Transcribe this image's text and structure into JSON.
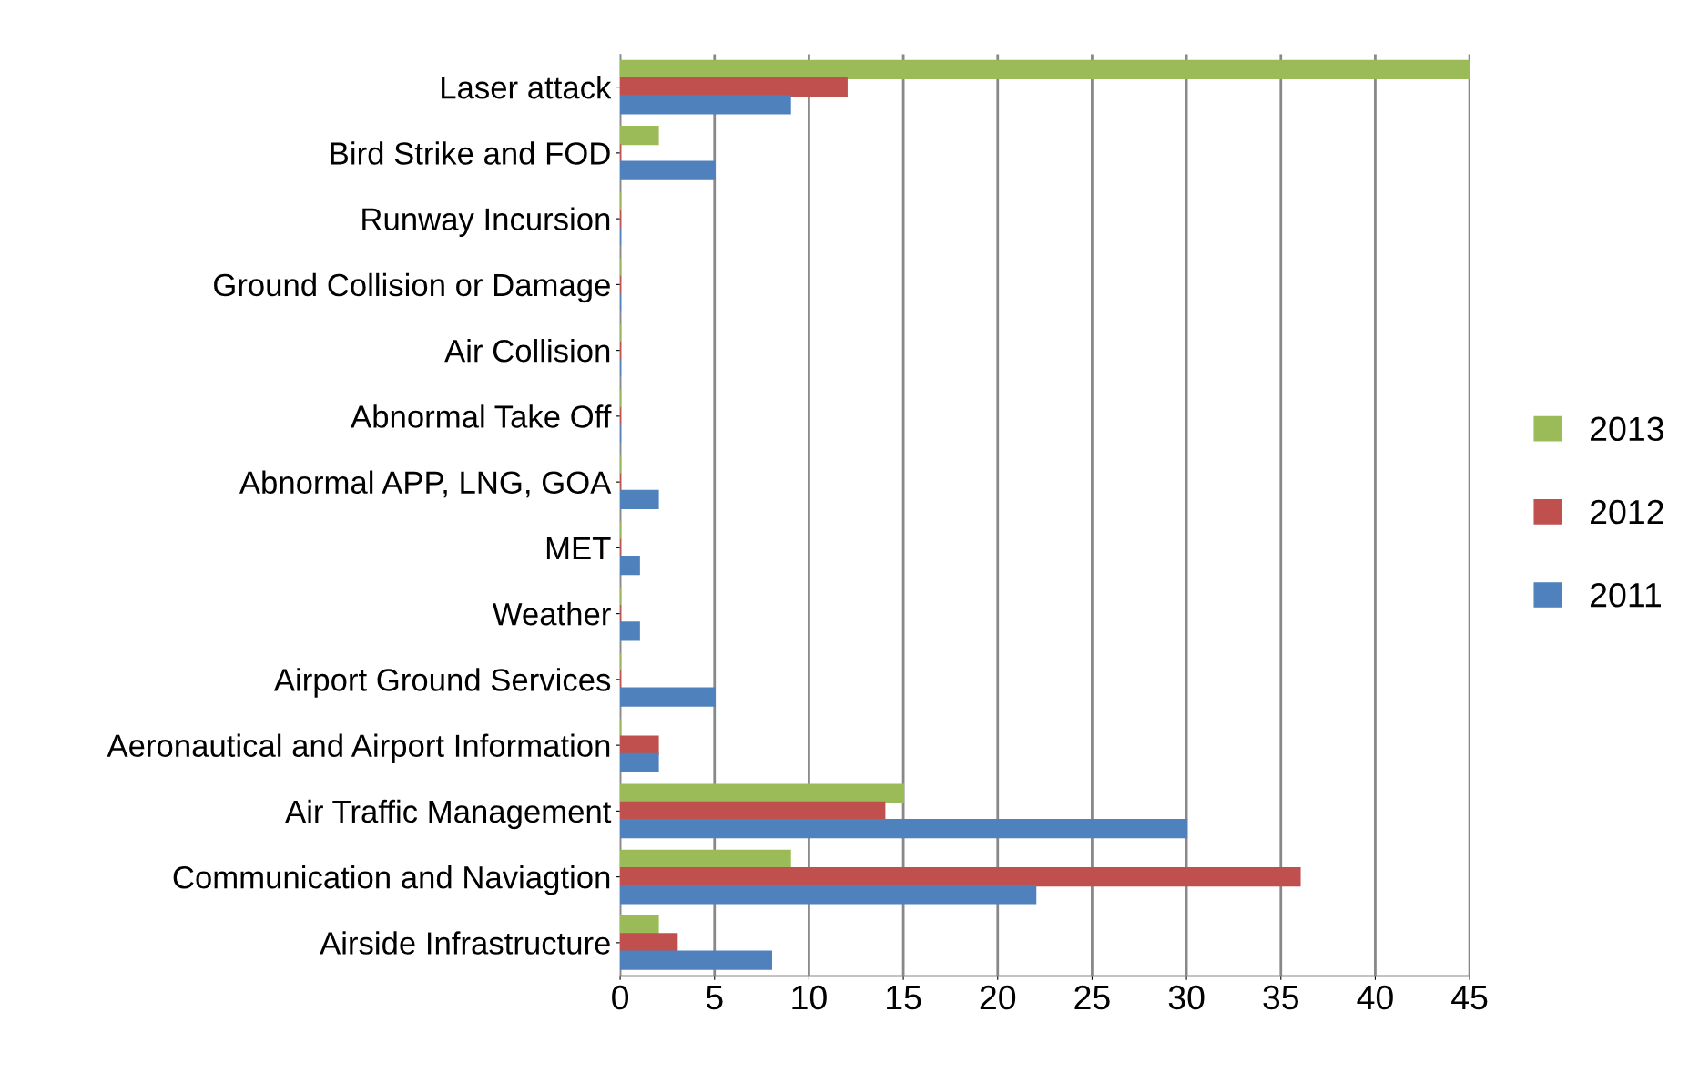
{
  "chart_data": {
    "type": "bar",
    "orientation": "horizontal",
    "categories": [
      "Laser attack",
      "Bird Strike and FOD",
      "Runway Incursion",
      "Ground Collision or Damage",
      "Air Collision",
      "Abnormal Take Off",
      "Abnormal APP, LNG, GOA",
      "MET",
      "Weather",
      "Airport Ground Services",
      "Aeronautical and Airport Information",
      "Air Traffic Management",
      "Communication and Naviagtion",
      "Airside Infrastructure"
    ],
    "series": [
      {
        "name": "2013",
        "color": "#9bbb59",
        "values": [
          45,
          2,
          0,
          0,
          0,
          0,
          0,
          0,
          0,
          0,
          0,
          15,
          9,
          2
        ]
      },
      {
        "name": "2012",
        "color": "#c0504d",
        "values": [
          12,
          0,
          0,
          0,
          0,
          0,
          0,
          0,
          0,
          0,
          2,
          14,
          36,
          3
        ]
      },
      {
        "name": "2011",
        "color": "#4f81bd",
        "values": [
          9,
          5,
          0,
          0,
          0,
          0,
          2,
          1,
          1,
          5,
          2,
          30,
          22,
          8
        ]
      }
    ],
    "xlim": [
      0,
      45
    ],
    "xticks": [
      0,
      5,
      10,
      15,
      20,
      25,
      30,
      35,
      40,
      45
    ],
    "grid": "x",
    "legend": "right"
  }
}
